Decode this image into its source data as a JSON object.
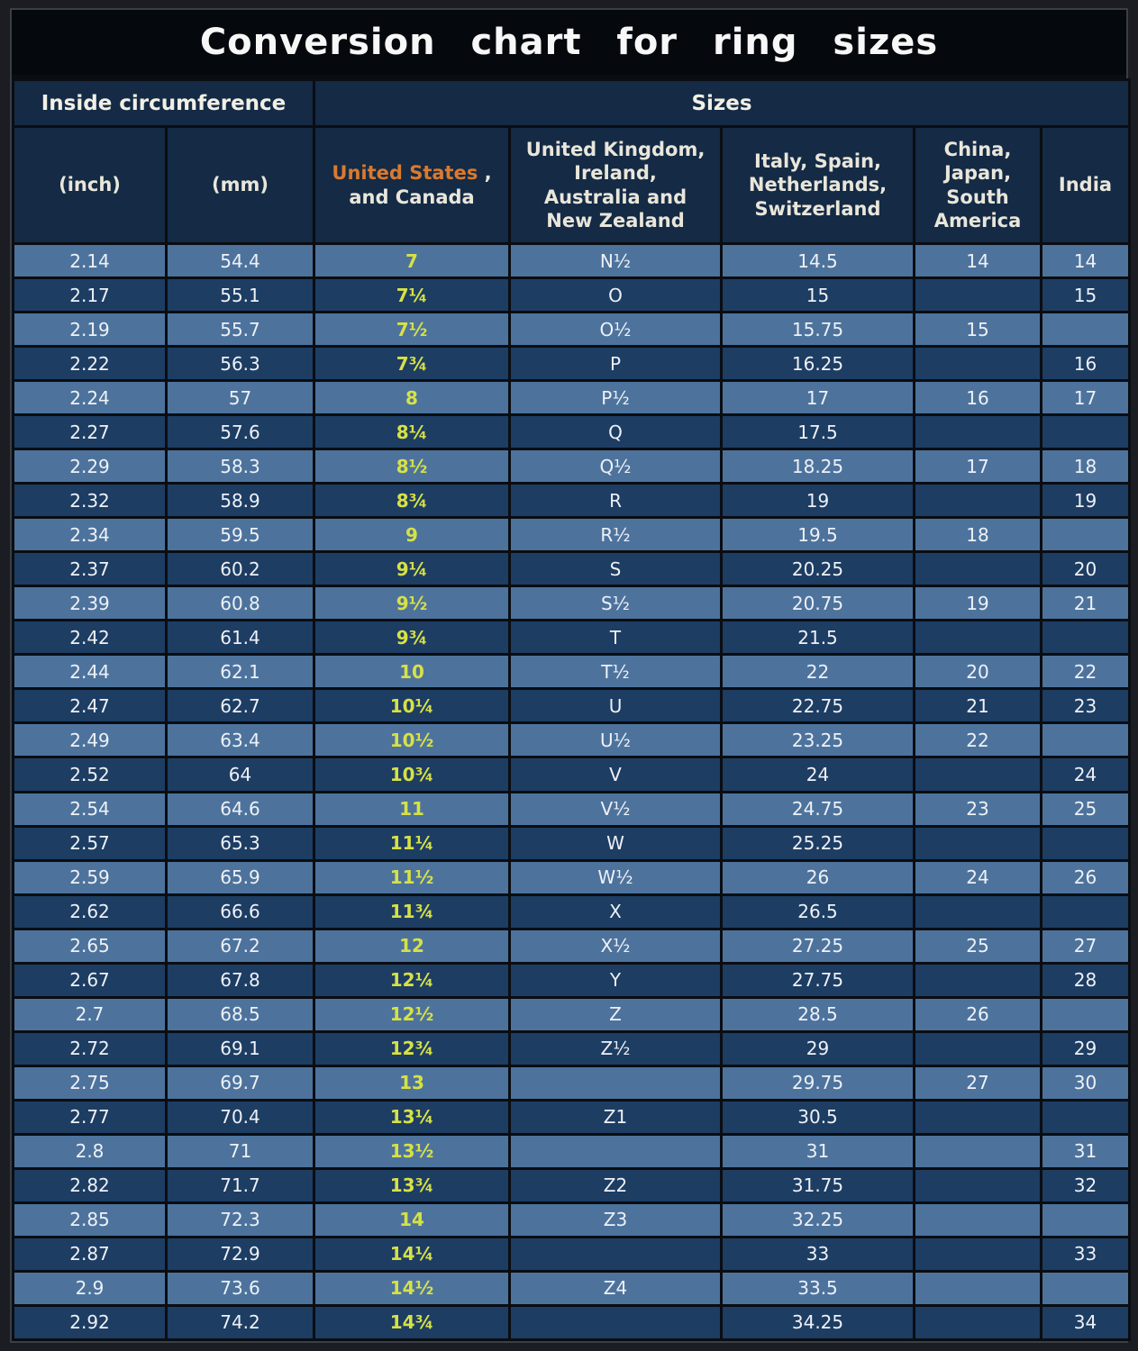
{
  "title": "Conversion  chart  for  ring  sizes",
  "colors": {
    "row_light": "#4d739d",
    "row_dark": "#1d3d63",
    "us_size": "#d7e145",
    "us_header_orange": "#d97a2e",
    "header_bg": "#142a45",
    "title_bg": "#05080d"
  },
  "group_headers": {
    "inside_circumference": "Inside circumference",
    "sizes": "Sizes"
  },
  "headers": {
    "inch": "(inch)",
    "mm": "(mm)",
    "us_name": "United States",
    "us_suffix": " ,",
    "us_line2": "and Canada",
    "uk": "United Kingdom,\nIreland,\nAustralia and\nNew Zealand",
    "italy": "Italy,  Spain,\nNetherlands,\nSwitzerland",
    "china": "China,\nJapan,\nSouth\nAmerica",
    "india": "India"
  },
  "chart_data": {
    "type": "table",
    "title": "Conversion chart for ring sizes",
    "group_columns": [
      {
        "label": "Inside circumference",
        "colspan": 2
      },
      {
        "label": "Sizes",
        "colspan": 5
      }
    ],
    "columns": [
      "(inch)",
      "(mm)",
      "United States , and Canada",
      "United Kingdom, Ireland, Australia and New Zealand",
      "Italy, Spain, Netherlands, Switzerland",
      "China, Japan, South America",
      "India"
    ],
    "rows": [
      [
        "2.14",
        "54.4",
        "7",
        "N½",
        "14.5",
        "14",
        "14"
      ],
      [
        "2.17",
        "55.1",
        "7¼",
        "O",
        "15",
        "",
        "15"
      ],
      [
        "2.19",
        "55.7",
        "7½",
        "O½",
        "15.75",
        "15",
        ""
      ],
      [
        "2.22",
        "56.3",
        "7¾",
        "P",
        "16.25",
        "",
        "16"
      ],
      [
        "2.24",
        "57",
        "8",
        "P½",
        "17",
        "16",
        "17"
      ],
      [
        "2.27",
        "57.6",
        "8¼",
        "Q",
        "17.5",
        "",
        ""
      ],
      [
        "2.29",
        "58.3",
        "8½",
        "Q½",
        "18.25",
        "17",
        "18"
      ],
      [
        "2.32",
        "58.9",
        "8¾",
        "R",
        "19",
        "",
        "19"
      ],
      [
        "2.34",
        "59.5",
        "9",
        "R½",
        "19.5",
        "18",
        ""
      ],
      [
        "2.37",
        "60.2",
        "9¼",
        "S",
        "20.25",
        "",
        "20"
      ],
      [
        "2.39",
        "60.8",
        "9½",
        "S½",
        "20.75",
        "19",
        "21"
      ],
      [
        "2.42",
        "61.4",
        "9¾",
        "T",
        "21.5",
        "",
        ""
      ],
      [
        "2.44",
        "62.1",
        "10",
        "T½",
        "22",
        "20",
        "22"
      ],
      [
        "2.47",
        "62.7",
        "10¼",
        "U",
        "22.75",
        "21",
        "23"
      ],
      [
        "2.49",
        "63.4",
        "10½",
        "U½",
        "23.25",
        "22",
        ""
      ],
      [
        "2.52",
        "64",
        "10¾",
        "V",
        "24",
        "",
        "24"
      ],
      [
        "2.54",
        "64.6",
        "11",
        "V½",
        "24.75",
        "23",
        "25"
      ],
      [
        "2.57",
        "65.3",
        "11¼",
        "W",
        "25.25",
        "",
        ""
      ],
      [
        "2.59",
        "65.9",
        "11½",
        "W½",
        "26",
        "24",
        "26"
      ],
      [
        "2.62",
        "66.6",
        "11¾",
        "X",
        "26.5",
        "",
        ""
      ],
      [
        "2.65",
        "67.2",
        "12",
        "X½",
        "27.25",
        "25",
        "27"
      ],
      [
        "2.67",
        "67.8",
        "12¼",
        "Y",
        "27.75",
        "",
        "28"
      ],
      [
        "2.7",
        "68.5",
        "12½",
        "Z",
        "28.5",
        "26",
        ""
      ],
      [
        "2.72",
        "69.1",
        "12¾",
        "Z½",
        "29",
        "",
        "29"
      ],
      [
        "2.75",
        "69.7",
        "13",
        "",
        "29.75",
        "27",
        "30"
      ],
      [
        "2.77",
        "70.4",
        "13¼",
        "Z1",
        "30.5",
        "",
        ""
      ],
      [
        "2.8",
        "71",
        "13½",
        "",
        "31",
        "",
        "31"
      ],
      [
        "2.82",
        "71.7",
        "13¾",
        "Z2",
        "31.75",
        "",
        "32"
      ],
      [
        "2.85",
        "72.3",
        "14",
        "Z3",
        "32.25",
        "",
        ""
      ],
      [
        "2.87",
        "72.9",
        "14¼",
        "",
        "33",
        "",
        "33"
      ],
      [
        "2.9",
        "73.6",
        "14½",
        "Z4",
        "33.5",
        "",
        ""
      ],
      [
        "2.92",
        "74.2",
        "14¾",
        "",
        "34.25",
        "",
        "34"
      ]
    ]
  }
}
